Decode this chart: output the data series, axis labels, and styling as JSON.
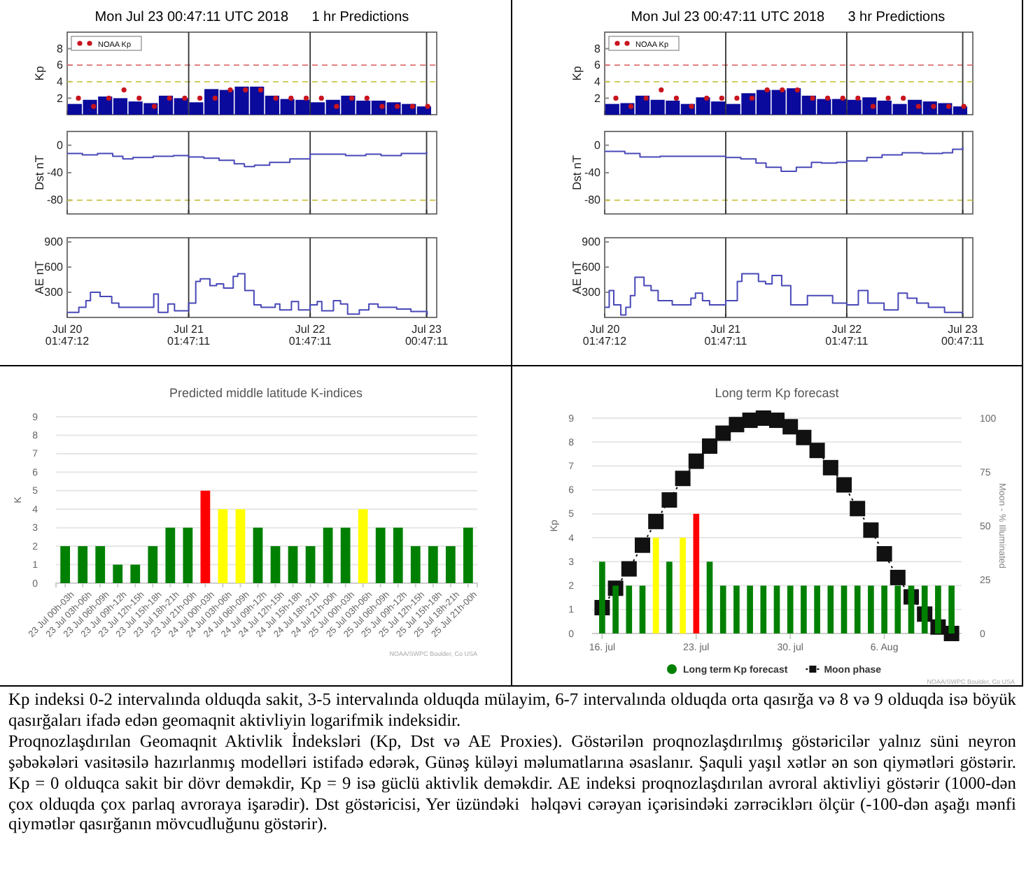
{
  "chart_data": [
    {
      "type": "bar",
      "title": "Mon Jul 23 00:47:11 UTC 2018      1 hr Predictions",
      "ylabel": "Kp",
      "xlim": [
        "2018-07-20T01:47",
        "2018-07-23T02:47"
      ],
      "ylim": [
        0,
        10
      ],
      "yticks": [
        2,
        4,
        6,
        8
      ],
      "tick_labels": "y",
      "legend": "top left",
      "marker": "circle",
      "xticks": [
        {
          "value": "2018-07-20T01:47",
          "label": null
        },
        {
          "value": "2018-07-21T01:47",
          "label": null
        },
        {
          "value": "2018-07-22T01:47",
          "label": null
        },
        {
          "value": "2018-07-23T00:47",
          "label": null
        }
      ],
      "ref_lines": [
        {
          "axis": "y",
          "value": 6,
          "color": "#e07070",
          "line_style": "dashed"
        },
        {
          "axis": "y",
          "value": 4,
          "color": "#c8c850",
          "line_style": "dashed"
        },
        {
          "axis": "x",
          "value": "2018-07-21T01:47",
          "color": "#333333"
        },
        {
          "axis": "x",
          "value": "2018-07-22T01:47",
          "color": "#333333"
        },
        {
          "axis": "x",
          "value": "2018-07-23T00:47",
          "color": "#333333"
        }
      ],
      "series": [
        {
          "type": "bar",
          "color": "#0a0a9c",
          "x": [
            "2018-07-20T03:17",
            "2018-07-20T06:17",
            "2018-07-20T09:17",
            "2018-07-20T12:17",
            "2018-07-20T15:17",
            "2018-07-20T18:17",
            "2018-07-20T21:17",
            "2018-07-21T00:17",
            "2018-07-21T03:17",
            "2018-07-21T06:17",
            "2018-07-21T09:17",
            "2018-07-21T12:17",
            "2018-07-21T15:17",
            "2018-07-21T18:17",
            "2018-07-21T21:17",
            "2018-07-22T00:17",
            "2018-07-22T03:17",
            "2018-07-22T06:17",
            "2018-07-22T09:17",
            "2018-07-22T12:17",
            "2018-07-22T15:17",
            "2018-07-22T18:17",
            "2018-07-22T21:17",
            "2018-07-23T00:17"
          ],
          "values": [
            1.3,
            1.8,
            2.2,
            2.0,
            1.6,
            1.4,
            2.3,
            2.0,
            1.5,
            3.1,
            3.0,
            3.4,
            3.4,
            2.3,
            1.9,
            1.8,
            1.5,
            1.8,
            2.3,
            1.7,
            1.7,
            1.5,
            1.3,
            1.0
          ]
        },
        {
          "type": "scatter",
          "name": "NOAA Kp",
          "color": "#c8141e",
          "x": [
            "2018-07-20T04:00",
            "2018-07-20T07:00",
            "2018-07-20T10:00",
            "2018-07-20T13:00",
            "2018-07-20T16:00",
            "2018-07-20T19:00",
            "2018-07-20T22:00",
            "2018-07-21T01:00",
            "2018-07-21T04:00",
            "2018-07-21T07:00",
            "2018-07-21T10:00",
            "2018-07-21T13:00",
            "2018-07-21T16:00",
            "2018-07-21T19:00",
            "2018-07-21T22:00",
            "2018-07-22T01:00",
            "2018-07-22T04:00",
            "2018-07-22T07:00",
            "2018-07-22T10:00",
            "2018-07-22T13:00",
            "2018-07-22T16:00",
            "2018-07-22T19:00",
            "2018-07-22T22:00",
            "2018-07-23T01:00"
          ],
          "values": [
            2,
            1,
            2,
            3,
            2,
            1,
            2,
            2,
            2,
            2,
            3,
            3,
            3,
            2,
            2,
            2,
            2,
            1,
            2,
            2,
            1,
            1,
            1,
            1
          ]
        }
      ]
    },
    {
      "type": "step",
      "ylabel": "Dst nT",
      "xlim": [
        "2018-07-20T01:47",
        "2018-07-23T02:47"
      ],
      "ylim": [
        -100,
        20
      ],
      "yticks": [
        -80,
        -40,
        0
      ],
      "tick_labels": "y",
      "color": "#4848b8",
      "xticks": [
        {
          "value": "2018-07-20T01:47",
          "label": null
        },
        {
          "value": "2018-07-21T01:47",
          "label": null
        },
        {
          "value": "2018-07-22T01:47",
          "label": null
        },
        {
          "value": "2018-07-23T00:47",
          "label": null
        }
      ],
      "ref_lines": [
        {
          "axis": "y",
          "value": -80,
          "color": "#c8c040",
          "line_style": "dashed"
        },
        {
          "axis": "x",
          "value": "2018-07-21T01:47",
          "color": "#333333"
        },
        {
          "axis": "x",
          "value": "2018-07-22T01:47",
          "color": "#333333"
        },
        {
          "axis": "x",
          "value": "2018-07-23T00:47",
          "color": "#333333"
        }
      ],
      "x": [
        "2018-07-20T01:47",
        "2018-07-20T04:47",
        "2018-07-20T07:47",
        "2018-07-20T10:47",
        "2018-07-20T12:47",
        "2018-07-20T14:47",
        "2018-07-20T18:47",
        "2018-07-20T22:47",
        "2018-07-21T01:47",
        "2018-07-21T04:47",
        "2018-07-21T07:47",
        "2018-07-21T10:47",
        "2018-07-21T12:47",
        "2018-07-21T14:47",
        "2018-07-21T17:47",
        "2018-07-21T21:47",
        "2018-07-22T01:47",
        "2018-07-22T04:47",
        "2018-07-22T08:47",
        "2018-07-22T12:47",
        "2018-07-22T15:47",
        "2018-07-22T19:47",
        "2018-07-23T00:47"
      ],
      "values": [
        -12,
        -14,
        -12,
        -16,
        -20,
        -18,
        -16,
        -15,
        -17,
        -19,
        -22,
        -27,
        -31,
        -29,
        -25,
        -20,
        -13,
        -13,
        -15,
        -13,
        -15,
        -12,
        -10
      ]
    },
    {
      "type": "step",
      "ylabel": "AE nT",
      "xlim": [
        "2018-07-20T01:47",
        "2018-07-23T02:47"
      ],
      "ylim": [
        0,
        950
      ],
      "yticks": [
        300,
        600,
        900
      ],
      "color": "#4848b8",
      "xticks": [
        {
          "value": "2018-07-20T01:47",
          "label": "Jul 20 01:47:12"
        },
        {
          "value": "2018-07-21T01:47",
          "label": "Jul 21 01:47:11"
        },
        {
          "value": "2018-07-22T01:47",
          "label": "Jul 22 01:47:11"
        },
        {
          "value": "2018-07-23T00:47",
          "label": "Jul 23 00:47:11"
        }
      ],
      "ref_lines": [
        {
          "axis": "x",
          "value": "2018-07-21T01:47",
          "color": "#333333"
        },
        {
          "axis": "x",
          "value": "2018-07-22T01:47",
          "color": "#333333"
        },
        {
          "axis": "x",
          "value": "2018-07-23T00:47",
          "color": "#333333"
        }
      ],
      "x": [
        "2018-07-20T01:47",
        "2018-07-20T04:05",
        "2018-07-20T05:29",
        "2018-07-20T06:23",
        "2018-07-20T08:17",
        "2018-07-20T10:35",
        "2018-07-20T11:59",
        "2018-07-20T18:53",
        "2018-07-20T19:47",
        "2018-07-20T21:41",
        "2018-07-20T22:59",
        "2018-07-21T01:47",
        "2018-07-21T03:11",
        "2018-07-21T04:05",
        "2018-07-21T05:59",
        "2018-07-21T07:17",
        "2018-07-21T08:41",
        "2018-07-21T10:35",
        "2018-07-21T11:29",
        "2018-07-21T12:53",
        "2018-07-21T14:41",
        "2018-07-21T16:05",
        "2018-07-21T18:53",
        "2018-07-21T19:47",
        "2018-07-21T22:05",
        "2018-07-21T23:29",
        "2018-07-22T01:47",
        "2018-07-22T03:11",
        "2018-07-22T04:05",
        "2018-07-22T06:23",
        "2018-07-22T07:47",
        "2018-07-22T09:11",
        "2018-07-22T11:29",
        "2018-07-22T13:23",
        "2018-07-22T15:11",
        "2018-07-22T18:53",
        "2018-07-22T21:41",
        "2018-07-23T00:53"
      ],
      "values": [
        60,
        120,
        200,
        300,
        250,
        170,
        120,
        280,
        60,
        160,
        80,
        170,
        430,
        460,
        380,
        400,
        350,
        490,
        520,
        320,
        150,
        120,
        160,
        90,
        190,
        90,
        150,
        190,
        80,
        200,
        160,
        40,
        90,
        160,
        120,
        100,
        70,
        30
      ]
    },
    {
      "type": "bar",
      "title": "Mon Jul 23 00:47:11 UTC 2018      3 hr Predictions",
      "ylabel": "Kp",
      "xlim": [
        "2018-07-20T01:47",
        "2018-07-23T02:47"
      ],
      "ylim": [
        0,
        10
      ],
      "yticks": [
        2,
        4,
        6,
        8
      ],
      "tick_labels": "y",
      "legend": "top left",
      "marker": "circle",
      "xticks": [
        {
          "value": "2018-07-20T01:47",
          "label": null
        },
        {
          "value": "2018-07-21T01:47",
          "label": null
        },
        {
          "value": "2018-07-22T01:47",
          "label": null
        },
        {
          "value": "2018-07-23T00:47",
          "label": null
        }
      ],
      "ref_lines": [
        {
          "axis": "y",
          "value": 6,
          "color": "#e07070",
          "line_style": "dashed"
        },
        {
          "axis": "y",
          "value": 4,
          "color": "#c8c850",
          "line_style": "dashed"
        },
        {
          "axis": "x",
          "value": "2018-07-21T01:47",
          "color": "#333333"
        },
        {
          "axis": "x",
          "value": "2018-07-22T01:47",
          "color": "#333333"
        },
        {
          "axis": "x",
          "value": "2018-07-23T00:47",
          "color": "#333333"
        }
      ],
      "series": [
        {
          "type": "bar",
          "color": "#0a0a9c",
          "x": [
            "2018-07-20T03:17",
            "2018-07-20T06:17",
            "2018-07-20T09:17",
            "2018-07-20T12:17",
            "2018-07-20T15:17",
            "2018-07-20T18:17",
            "2018-07-20T21:17",
            "2018-07-21T00:17",
            "2018-07-21T03:17",
            "2018-07-21T06:17",
            "2018-07-21T09:17",
            "2018-07-21T12:17",
            "2018-07-21T15:17",
            "2018-07-21T18:17",
            "2018-07-21T21:17",
            "2018-07-22T00:17",
            "2018-07-22T03:17",
            "2018-07-22T06:17",
            "2018-07-22T09:17",
            "2018-07-22T12:17",
            "2018-07-22T15:17",
            "2018-07-22T18:17",
            "2018-07-22T21:17",
            "2018-07-23T00:17"
          ],
          "values": [
            1.3,
            1.4,
            2.3,
            1.8,
            1.7,
            1.3,
            2.1,
            1.6,
            1.3,
            2.6,
            3.0,
            3.0,
            3.2,
            2.3,
            1.9,
            1.9,
            1.8,
            2.1,
            1.7,
            1.3,
            1.8,
            1.6,
            1.4,
            1.0
          ]
        },
        {
          "type": "scatter",
          "name": "NOAA Kp",
          "color": "#c8141e",
          "x": [
            "2018-07-20T04:00",
            "2018-07-20T07:00",
            "2018-07-20T10:00",
            "2018-07-20T13:00",
            "2018-07-20T16:00",
            "2018-07-20T19:00",
            "2018-07-20T22:00",
            "2018-07-21T01:00",
            "2018-07-21T04:00",
            "2018-07-21T07:00",
            "2018-07-21T10:00",
            "2018-07-21T13:00",
            "2018-07-21T16:00",
            "2018-07-21T19:00",
            "2018-07-21T22:00",
            "2018-07-22T01:00",
            "2018-07-22T04:00",
            "2018-07-22T07:00",
            "2018-07-22T10:00",
            "2018-07-22T13:00",
            "2018-07-22T16:00",
            "2018-07-22T19:00",
            "2018-07-22T22:00",
            "2018-07-23T01:00"
          ],
          "values": [
            2,
            1,
            2,
            3,
            2,
            1,
            2,
            2,
            2,
            2,
            3,
            3,
            3,
            2,
            2,
            2,
            2,
            1,
            2,
            2,
            1,
            1,
            1,
            1
          ]
        }
      ]
    },
    {
      "type": "step",
      "ylabel": "Dst nT",
      "xlim": [
        "2018-07-20T01:47",
        "2018-07-23T02:47"
      ],
      "ylim": [
        -100,
        20
      ],
      "yticks": [
        -80,
        -40,
        0
      ],
      "tick_labels": "y",
      "color": "#4848b8",
      "xticks": [
        {
          "value": "2018-07-20T01:47",
          "label": null
        },
        {
          "value": "2018-07-21T01:47",
          "label": null
        },
        {
          "value": "2018-07-22T01:47",
          "label": null
        },
        {
          "value": "2018-07-23T00:47",
          "label": null
        }
      ],
      "ref_lines": [
        {
          "axis": "y",
          "value": -80,
          "color": "#c8c040",
          "line_style": "dashed"
        },
        {
          "axis": "x",
          "value": "2018-07-21T01:47",
          "color": "#333333"
        },
        {
          "axis": "x",
          "value": "2018-07-22T01:47",
          "color": "#333333"
        },
        {
          "axis": "x",
          "value": "2018-07-23T00:47",
          "color": "#333333"
        }
      ],
      "x": [
        "2018-07-20T01:47",
        "2018-07-20T05:47",
        "2018-07-20T08:47",
        "2018-07-20T12:47",
        "2018-07-20T20:47",
        "2018-07-21T01:47",
        "2018-07-21T04:47",
        "2018-07-21T07:47",
        "2018-07-21T09:47",
        "2018-07-21T12:47",
        "2018-07-21T13:47",
        "2018-07-21T15:47",
        "2018-07-21T18:47",
        "2018-07-21T20:47",
        "2018-07-21T23:47",
        "2018-07-22T01:47",
        "2018-07-22T05:47",
        "2018-07-22T08:47",
        "2018-07-22T12:47",
        "2018-07-22T16:47",
        "2018-07-22T20:47",
        "2018-07-22T22:47",
        "2018-07-23T00:47"
      ],
      "values": [
        -9,
        -12,
        -17,
        -16,
        -16,
        -18,
        -20,
        -26,
        -32,
        -38,
        -38,
        -32,
        -25,
        -26,
        -25,
        -23,
        -18,
        -14,
        -11,
        -12,
        -11,
        -6,
        -3
      ]
    },
    {
      "type": "step",
      "ylabel": "AE nT",
      "xlim": [
        "2018-07-20T01:47",
        "2018-07-23T02:47"
      ],
      "ylim": [
        0,
        950
      ],
      "yticks": [
        300,
        600,
        900
      ],
      "color": "#4848b8",
      "xticks": [
        {
          "value": "2018-07-20T01:47",
          "label": "Jul 20 01:47:12"
        },
        {
          "value": "2018-07-21T01:47",
          "label": "Jul 21 01:47:11"
        },
        {
          "value": "2018-07-22T01:47",
          "label": "Jul 22 01:47:11"
        },
        {
          "value": "2018-07-23T00:47",
          "label": "Jul 23 00:47:11"
        }
      ],
      "ref_lines": [
        {
          "axis": "x",
          "value": "2018-07-21T01:47",
          "color": "#333333"
        },
        {
          "axis": "x",
          "value": "2018-07-22T01:47",
          "color": "#333333"
        },
        {
          "axis": "x",
          "value": "2018-07-23T00:47",
          "color": "#333333"
        }
      ],
      "x": [
        "2018-07-20T01:47",
        "2018-07-20T02:41",
        "2018-07-20T03:35",
        "2018-07-20T04:59",
        "2018-07-20T05:59",
        "2018-07-20T06:53",
        "2018-07-20T07:47",
        "2018-07-20T09:35",
        "2018-07-20T10:59",
        "2018-07-20T12:23",
        "2018-07-20T15:11",
        "2018-07-20T18:53",
        "2018-07-20T19:47",
        "2018-07-20T21:11",
        "2018-07-20T22:35",
        "2018-07-21T01:47",
        "2018-07-21T04:05",
        "2018-07-21T04:59",
        "2018-07-21T08:17",
        "2018-07-21T09:41",
        "2018-07-21T10:59",
        "2018-07-21T12:53",
        "2018-07-21T14:41",
        "2018-07-21T17:59",
        "2018-07-21T22:59",
        "2018-07-22T01:47",
        "2018-07-22T04:05",
        "2018-07-22T05:59",
        "2018-07-22T09:11",
        "2018-07-22T11:59",
        "2018-07-22T13:47",
        "2018-07-22T15:41",
        "2018-07-22T17:59",
        "2018-07-22T21:11",
        "2018-07-23T00:41"
      ],
      "values": [
        120,
        320,
        150,
        30,
        120,
        260,
        480,
        380,
        320,
        200,
        150,
        230,
        290,
        200,
        150,
        200,
        430,
        520,
        430,
        400,
        500,
        380,
        150,
        260,
        170,
        150,
        320,
        170,
        90,
        290,
        230,
        170,
        120,
        60,
        40
      ]
    },
    {
      "type": "bar",
      "title": "Predicted middle latitude K-indices",
      "ylabel": "K",
      "ylim": [
        0,
        9
      ],
      "yticks": [
        0,
        1,
        2,
        3,
        4,
        5,
        6,
        7,
        8,
        9
      ],
      "grid": "y",
      "categories": [
        "23 Jul 00h-03h",
        "23 Jul 03h-06h",
        "23 Jul 06h-09h",
        "23 Jul 09h-12h",
        "23 Jul 12h-15h",
        "23 Jul 15h-18h",
        "23 Jul 18h-21h",
        "23 Jul 21h-00h",
        "24 Jul 00h-03h",
        "24 Jul 03h-06h",
        "24 Jul 06h-09h",
        "24 Jul 09h-12h",
        "24 Jul 12h-15h",
        "24 Jul 15h-18h",
        "24 Jul 18h-21h",
        "24 Jul 21h-00h",
        "25 Jul 00h-03h",
        "25 Jul 03h-06h",
        "25 Jul 06h-09h",
        "25 Jul 09h-12h",
        "25 Jul 12h-15h",
        "25 Jul 15h-18h",
        "25 Jul 18h-21h",
        "25 Jul 21h-00h"
      ],
      "values": [
        2,
        2,
        2,
        1,
        1,
        2,
        3,
        3,
        5,
        4,
        4,
        3,
        2,
        2,
        2,
        3,
        3,
        4,
        3,
        3,
        2,
        2,
        2,
        3
      ],
      "colors": [
        "#008000",
        "#008000",
        "#008000",
        "#008000",
        "#008000",
        "#008000",
        "#008000",
        "#008000",
        "#ff0000",
        "#ffff00",
        "#ffff00",
        "#008000",
        "#008000",
        "#008000",
        "#008000",
        "#008000",
        "#008000",
        "#ffff00",
        "#008000",
        "#008000",
        "#008000",
        "#008000",
        "#008000",
        "#008000"
      ],
      "annotations": [
        "NOAA/SWPC Boulder, Co USA"
      ]
    },
    {
      "type": "bar",
      "title": "Long term Kp forecast",
      "ylabel": "Kp",
      "y2label": "Moon - % Illuminated",
      "ylim": [
        0,
        9
      ],
      "yticks": [
        0,
        1,
        2,
        3,
        4,
        5,
        6,
        7,
        8,
        9
      ],
      "y2lim": [
        0,
        100
      ],
      "y2ticks": [
        0,
        25,
        50,
        75,
        100
      ],
      "grid": "y",
      "legend": "bottom",
      "xlim": [
        "2018-07-15T06:00",
        "2018-08-11T18:00"
      ],
      "xticks": [
        {
          "value": "2018-07-16",
          "label": "16. jul"
        },
        {
          "value": "2018-07-23",
          "label": "23. jul"
        },
        {
          "value": "2018-07-30",
          "label": "30. jul"
        },
        {
          "value": "2018-08-06",
          "label": "6. Aug"
        }
      ],
      "x": [
        "2018-07-16",
        "2018-07-17",
        "2018-07-18",
        "2018-07-19",
        "2018-07-20",
        "2018-07-21",
        "2018-07-22",
        "2018-07-23",
        "2018-07-24",
        "2018-07-25",
        "2018-07-26",
        "2018-07-27",
        "2018-07-28",
        "2018-07-29",
        "2018-07-30",
        "2018-07-31",
        "2018-08-01",
        "2018-08-02",
        "2018-08-03",
        "2018-08-04",
        "2018-08-05",
        "2018-08-06",
        "2018-08-07",
        "2018-08-08",
        "2018-08-09",
        "2018-08-10",
        "2018-08-11"
      ],
      "series": [
        {
          "type": "bar",
          "name": "Long term Kp forecast",
          "color": "#008000",
          "values": [
            3,
            2,
            2,
            2,
            4,
            3,
            4,
            5,
            3,
            2,
            2,
            2,
            2,
            2,
            2,
            2,
            2,
            2,
            2,
            2,
            2,
            2,
            2,
            2,
            2,
            2,
            2
          ],
          "colors": [
            "#008000",
            "#008000",
            "#008000",
            "#008000",
            "#ffff00",
            "#008000",
            "#ffff00",
            "#ff0000",
            "#008000",
            "#008000",
            "#008000",
            "#008000",
            "#008000",
            "#008000",
            "#008000",
            "#008000",
            "#008000",
            "#008000",
            "#008000",
            "#008000",
            "#008000",
            "#008000",
            "#008000",
            "#008000",
            "#008000",
            "#008000",
            "#008000"
          ]
        },
        {
          "type": "line",
          "name": "Moon phase",
          "axis": "y2",
          "color": "#111111",
          "marker": "square",
          "line_style": "dotted",
          "values": [
            12,
            21,
            30,
            41,
            52,
            62,
            72,
            80,
            87,
            93,
            97,
            99,
            100,
            99,
            96,
            91,
            85,
            77,
            69,
            58,
            48,
            37,
            26,
            17,
            9,
            3,
            0
          ]
        }
      ],
      "annotations": [
        "NOAA/SWPC Boulder, Co USA"
      ]
    },
    {
      "type": "other",
      "annotations": [
        "Kp indeksi 0-2 intervalında olduqda sakit, 3-5 intervalında olduqda mülayim, 6-7 intervalında olduqda orta qasırğa və 8 və 9 olduqda isə böyük qasırğaları ifadə edən geomaqnit aktivliyin logarifmik indeksidir.",
        "Proqnozlaşdırılan Geomaqnit Aktivlik İndeksləri (Kp, Dst və AE Proxies). Göstərilən proqnozlaşdırılmış göstəricilər yalnız süni neyron şəbəkələri vasitəsilə hazırlanmış modelləri istifadə edərək, Günəş küləyi məlumatlarına əsaslanır. Şaquli yaşıl xətlər ən son qiymətləri göstərir. Kp = 0 olduqca sakit bir dövr deməkdir, Kp = 9 isə güclü aktivlik deməkdir. AE indeksi proqnozlaşdırılan avroral aktivliyi göstərir (1000-dən çox olduqda çox parlaq avroraya işarədir). Dst göstəricisi, Yer üzündəki  həlqəvi cərəyan içərisindəki zərrəciklərı ölçür (-100-dən aşağı mənfi qiymətlər qasırğanın mövcudluğunu göstərir)."
      ]
    }
  ]
}
